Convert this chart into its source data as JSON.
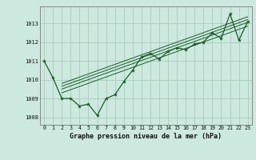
{
  "xlabel": "Graphe pression niveau de la mer (hPa)",
  "bg_color": "#cce8df",
  "grid_color": "#aaccbb",
  "line_color": "#1a5c2a",
  "hours": [
    0,
    1,
    2,
    3,
    4,
    5,
    6,
    7,
    8,
    9,
    10,
    11,
    12,
    13,
    14,
    15,
    16,
    17,
    18,
    19,
    20,
    21,
    22,
    23
  ],
  "pressure": [
    1011.0,
    1010.1,
    1009.0,
    1009.0,
    1008.6,
    1008.7,
    1008.1,
    1009.0,
    1009.2,
    1009.9,
    1010.5,
    1011.2,
    1011.4,
    1011.1,
    1011.5,
    1011.7,
    1011.6,
    1011.9,
    1012.0,
    1012.5,
    1012.2,
    1013.5,
    1012.1,
    1013.1
  ],
  "ylim": [
    1007.6,
    1013.9
  ],
  "yticks": [
    1008,
    1009,
    1010,
    1011,
    1012,
    1013
  ],
  "trend_lines": [
    [
      [
        2,
        1009.3
      ],
      [
        23,
        1012.85
      ]
    ],
    [
      [
        2,
        1009.5
      ],
      [
        23,
        1013.05
      ]
    ],
    [
      [
        2,
        1009.65
      ],
      [
        23,
        1013.2
      ]
    ],
    [
      [
        2,
        1009.8
      ],
      [
        23,
        1013.35
      ]
    ]
  ]
}
